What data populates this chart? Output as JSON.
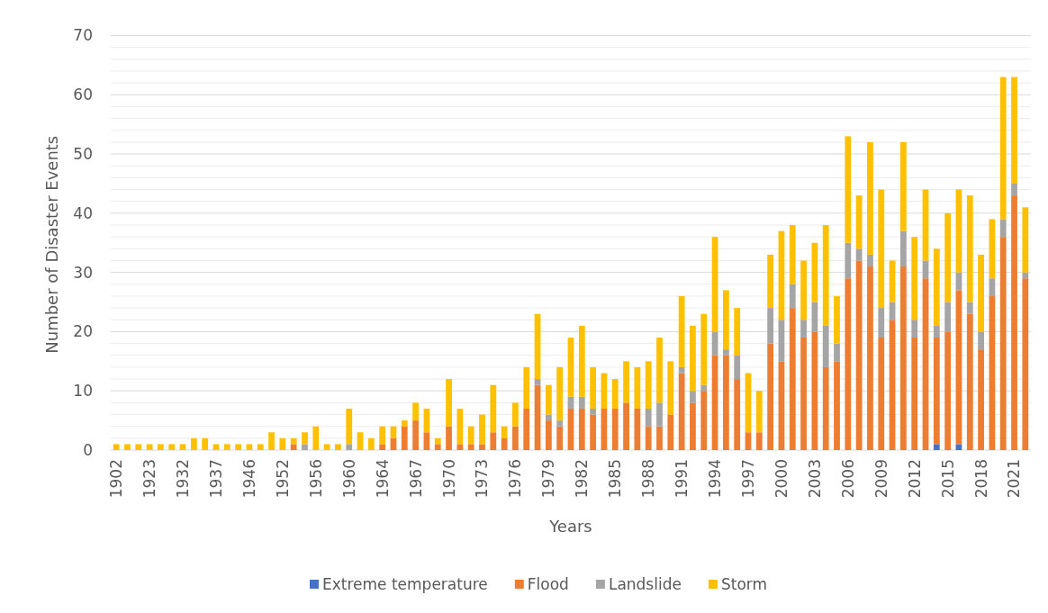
{
  "chart_data": {
    "type": "bar",
    "stacked": true,
    "xlabel": "Years",
    "ylabel": "Number of Disaster Events",
    "categories": [
      "1902",
      null,
      null,
      "1923",
      null,
      null,
      "1932",
      null,
      null,
      "1937",
      null,
      null,
      "1946",
      null,
      null,
      "1952",
      null,
      null,
      "1956",
      null,
      null,
      "1960",
      null,
      null,
      "1964",
      null,
      null,
      "1967",
      null,
      null,
      "1970",
      null,
      null,
      "1973",
      null,
      null,
      "1976",
      null,
      null,
      "1979",
      null,
      null,
      "1982",
      null,
      null,
      "1985",
      null,
      null,
      "1988",
      null,
      null,
      "1991",
      null,
      null,
      "1994",
      null,
      null,
      "1997",
      null,
      null,
      "2000",
      null,
      null,
      "2003",
      null,
      null,
      "2006",
      null,
      null,
      "2009",
      null,
      null,
      "2012",
      null,
      null,
      "2015",
      null,
      null,
      "2018",
      null,
      null,
      "2021",
      null
    ],
    "series": [
      {
        "name": "Extreme temperature",
        "color": "#4472c4",
        "values": [
          null,
          null,
          null,
          null,
          null,
          null,
          null,
          null,
          null,
          null,
          null,
          null,
          null,
          null,
          null,
          null,
          null,
          null,
          null,
          null,
          null,
          null,
          null,
          null,
          null,
          null,
          null,
          null,
          null,
          null,
          null,
          null,
          null,
          null,
          null,
          null,
          null,
          null,
          null,
          null,
          null,
          null,
          null,
          null,
          null,
          null,
          null,
          null,
          null,
          null,
          null,
          null,
          null,
          null,
          null,
          null,
          null,
          null,
          null,
          null,
          null,
          null,
          null,
          null,
          null,
          null,
          null,
          null,
          null,
          null,
          null,
          null,
          null,
          null,
          1,
          null,
          1,
          null,
          null,
          null,
          null,
          null,
          null
        ]
      },
      {
        "name": "Flood",
        "color": "#ed7d31",
        "values": [
          null,
          null,
          null,
          null,
          null,
          null,
          null,
          null,
          null,
          null,
          null,
          null,
          null,
          null,
          null,
          null,
          1,
          null,
          null,
          null,
          null,
          null,
          null,
          null,
          1,
          2,
          4,
          5,
          3,
          1,
          4,
          1,
          1,
          1,
          3,
          2,
          4,
          7,
          11,
          5,
          4,
          7,
          7,
          6,
          7,
          7,
          8,
          7,
          4,
          4,
          6,
          13,
          8,
          10,
          16,
          16,
          12,
          3,
          3,
          18,
          15,
          24,
          19,
          20,
          14,
          15,
          29,
          32,
          31,
          19,
          22,
          31,
          19,
          29,
          18,
          20,
          26,
          23,
          17,
          26,
          36,
          43,
          29
        ]
      },
      {
        "name": "Landslide",
        "color": "#a5a5a5",
        "values": [
          null,
          null,
          null,
          null,
          null,
          null,
          null,
          null,
          null,
          null,
          null,
          null,
          null,
          null,
          null,
          null,
          null,
          1,
          null,
          null,
          null,
          1,
          null,
          null,
          null,
          null,
          null,
          null,
          null,
          null,
          null,
          null,
          null,
          null,
          null,
          null,
          null,
          null,
          1,
          1,
          1,
          2,
          2,
          1,
          null,
          null,
          null,
          null,
          3,
          4,
          null,
          1,
          2,
          1,
          4,
          1,
          4,
          null,
          null,
          6,
          7,
          4,
          3,
          5,
          7,
          3,
          6,
          2,
          2,
          5,
          3,
          6,
          3,
          3,
          2,
          5,
          3,
          2,
          3,
          3,
          3,
          2,
          1
        ]
      },
      {
        "name": "Storm",
        "color": "#ffc000",
        "values": [
          1,
          1,
          1,
          1,
          1,
          1,
          1,
          2,
          2,
          1,
          1,
          1,
          1,
          1,
          3,
          2,
          1,
          2,
          4,
          1,
          1,
          6,
          3,
          2,
          3,
          2,
          1,
          3,
          4,
          1,
          8,
          6,
          3,
          5,
          8,
          2,
          4,
          7,
          11,
          5,
          9,
          10,
          12,
          7,
          6,
          5,
          7,
          7,
          8,
          11,
          9,
          12,
          11,
          12,
          16,
          10,
          8,
          10,
          7,
          9,
          15,
          10,
          10,
          10,
          17,
          8,
          18,
          9,
          19,
          20,
          7,
          15,
          14,
          12,
          13,
          15,
          14,
          18,
          13,
          10,
          24,
          18,
          11
        ]
      }
    ],
    "ylim": [
      0,
      70
    ],
    "yticks": [
      0,
      {
        "value": 2,
        "label": null
      },
      {
        "value": 4,
        "label": null
      },
      {
        "value": 6,
        "label": null
      },
      {
        "value": 8,
        "label": null
      },
      10,
      {
        "value": 12,
        "label": null
      },
      {
        "value": 14,
        "label": null
      },
      {
        "value": 16,
        "label": null
      },
      {
        "value": 18,
        "label": null
      },
      20,
      {
        "value": 22,
        "label": null
      },
      {
        "value": 24,
        "label": null
      },
      {
        "value": 26,
        "label": null
      },
      {
        "value": 28,
        "label": null
      },
      30,
      {
        "value": 32,
        "label": null
      },
      {
        "value": 34,
        "label": null
      },
      {
        "value": 36,
        "label": null
      },
      {
        "value": 38,
        "label": null
      },
      40,
      {
        "value": 42,
        "label": null
      },
      {
        "value": 44,
        "label": null
      },
      {
        "value": 46,
        "label": null
      },
      {
        "value": 48,
        "label": null
      },
      50,
      {
        "value": 52,
        "label": null
      },
      {
        "value": 54,
        "label": null
      },
      {
        "value": 56,
        "label": null
      },
      {
        "value": 58,
        "label": null
      },
      60,
      {
        "value": 62,
        "label": null
      },
      {
        "value": 64,
        "label": null
      },
      {
        "value": 66,
        "label": null
      },
      {
        "value": 68,
        "label": null
      },
      70
    ],
    "grid": "y",
    "legend": "bottom"
  }
}
